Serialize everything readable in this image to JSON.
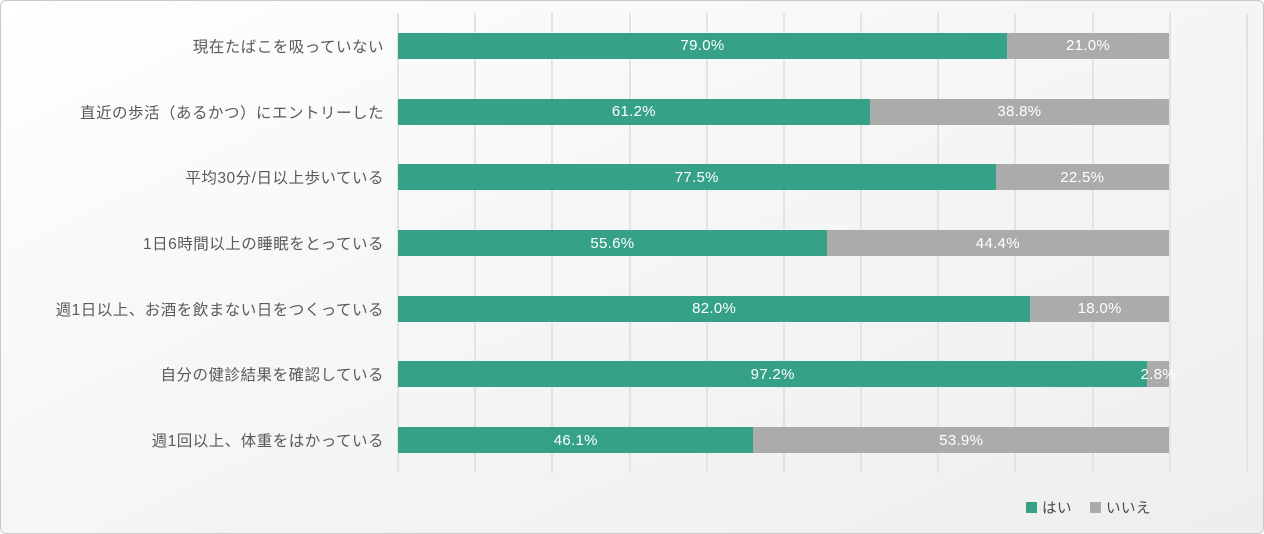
{
  "panel": {
    "border_color": "#c9c9c9",
    "background_top": "#ffffff",
    "background_bottom": "#eeeeee"
  },
  "chart_data": {
    "type": "bar",
    "orientation": "horizontal",
    "stacked": true,
    "title": "",
    "xlabel": "",
    "ylabel": "",
    "unit": "%",
    "categories": [
      "現在たばこを吸っていない",
      "直近の歩活（あるかつ）にエントリーした",
      "平均30分/日以上歩いている",
      "1日6時間以上の睡眠をとっている",
      "週1日以上、お酒を飲まない日をつくっている",
      "自分の健診結果を確認している",
      "週1回以上、体重をはかっている"
    ],
    "series": [
      {
        "name": "はい",
        "color": "#35a288",
        "values": [
          79.0,
          61.2,
          77.5,
          55.6,
          82.0,
          97.2,
          46.1
        ]
      },
      {
        "name": "いいえ",
        "color": "#ababab",
        "values": [
          21.0,
          38.8,
          22.5,
          44.4,
          18.0,
          2.8,
          53.9
        ]
      }
    ],
    "data_labels": {
      "visible": true,
      "color": "#ffffff",
      "format": "0.0\"%\""
    },
    "axis": {
      "min": 0,
      "max": 110,
      "gridline_step": 10,
      "grid": true,
      "tick_labels_visible": false
    },
    "category_label_color": "#595959",
    "gridline_color": "#e3e3e3",
    "legend": {
      "position": "bottom-right"
    }
  }
}
